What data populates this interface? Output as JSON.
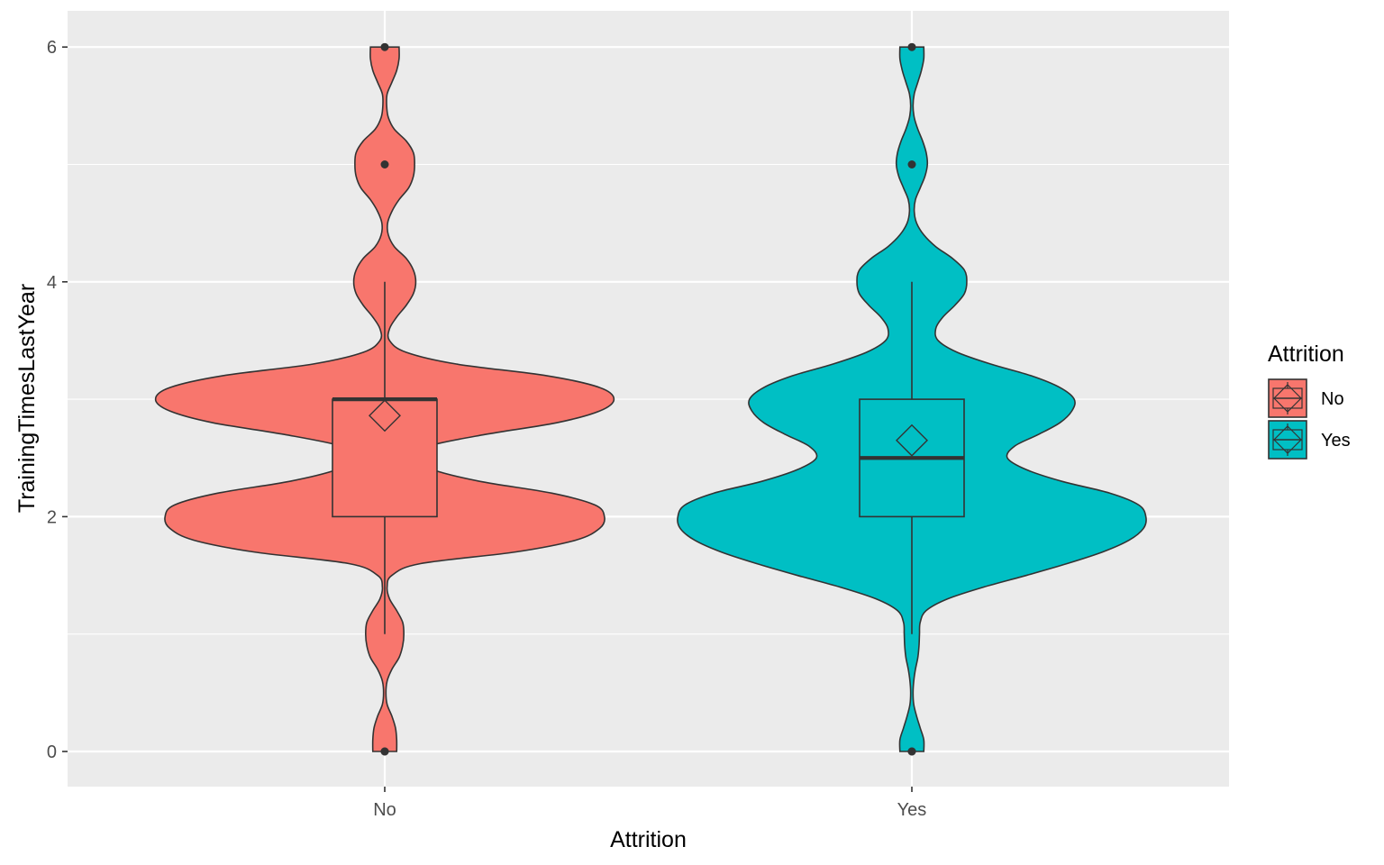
{
  "chart_data": {
    "type": "violin",
    "xlabel": "Attrition",
    "ylabel": "TrainingTimesLastYear",
    "categories": [
      "No",
      "Yes"
    ],
    "ylim": [
      -0.3,
      6.3
    ],
    "yticks": [
      0,
      2,
      4,
      6
    ],
    "grid": true,
    "legend": {
      "title": "Attrition",
      "position": "right",
      "entries": [
        "No",
        "Yes"
      ]
    },
    "colors": {
      "No": "#F8766D",
      "Yes": "#00BFC4",
      "panel": "#EBEBEB",
      "grid": "#FFFFFF",
      "outline": "#333333"
    },
    "series": [
      {
        "name": "No",
        "density": [
          [
            0,
            0.05
          ],
          [
            0.1,
            0.05
          ],
          [
            0.2,
            0.045
          ],
          [
            0.3,
            0.03
          ],
          [
            0.4,
            0.01
          ],
          [
            0.5,
            0.005
          ],
          [
            0.6,
            0.01
          ],
          [
            0.7,
            0.03
          ],
          [
            0.8,
            0.06
          ],
          [
            0.9,
            0.075
          ],
          [
            1,
            0.08
          ],
          [
            1.1,
            0.075
          ],
          [
            1.2,
            0.05
          ],
          [
            1.3,
            0.02
          ],
          [
            1.4,
            0.01
          ],
          [
            1.5,
            0.03
          ],
          [
            1.6,
            0.15
          ],
          [
            1.7,
            0.55
          ],
          [
            1.8,
            0.8
          ],
          [
            1.9,
            0.9
          ],
          [
            2,
            0.92
          ],
          [
            2.1,
            0.88
          ],
          [
            2.2,
            0.7
          ],
          [
            2.3,
            0.4
          ],
          [
            2.4,
            0.2
          ],
          [
            2.5,
            0.11
          ],
          [
            2.6,
            0.18
          ],
          [
            2.7,
            0.42
          ],
          [
            2.8,
            0.72
          ],
          [
            2.9,
            0.9
          ],
          [
            3,
            0.96
          ],
          [
            3.1,
            0.9
          ],
          [
            3.2,
            0.68
          ],
          [
            3.3,
            0.3
          ],
          [
            3.4,
            0.09
          ],
          [
            3.5,
            0.02
          ],
          [
            3.6,
            0.02
          ],
          [
            3.7,
            0.05
          ],
          [
            3.8,
            0.09
          ],
          [
            3.9,
            0.12
          ],
          [
            4,
            0.13
          ],
          [
            4.1,
            0.12
          ],
          [
            4.2,
            0.09
          ],
          [
            4.3,
            0.04
          ],
          [
            4.4,
            0.015
          ],
          [
            4.5,
            0.012
          ],
          [
            4.6,
            0.03
          ],
          [
            4.7,
            0.06
          ],
          [
            4.8,
            0.1
          ],
          [
            4.9,
            0.12
          ],
          [
            5,
            0.125
          ],
          [
            5.1,
            0.12
          ],
          [
            5.2,
            0.09
          ],
          [
            5.3,
            0.04
          ],
          [
            5.4,
            0.015
          ],
          [
            5.5,
            0.008
          ],
          [
            5.6,
            0.01
          ],
          [
            5.7,
            0.03
          ],
          [
            5.8,
            0.05
          ],
          [
            5.9,
            0.06
          ],
          [
            6,
            0.06
          ]
        ],
        "box": {
          "q1": 2,
          "median": 3,
          "q3": 3,
          "whisker_low": 1,
          "whisker_high": 4,
          "mean": 2.86,
          "outliers": [
            0,
            0,
            5,
            6
          ]
        }
      },
      {
        "name": "Yes",
        "density": [
          [
            0,
            0.05
          ],
          [
            0.1,
            0.05
          ],
          [
            0.2,
            0.035
          ],
          [
            0.3,
            0.02
          ],
          [
            0.4,
            0.008
          ],
          [
            0.5,
            0.005
          ],
          [
            0.6,
            0.008
          ],
          [
            0.7,
            0.015
          ],
          [
            0.8,
            0.025
          ],
          [
            0.9,
            0.03
          ],
          [
            1,
            0.032
          ],
          [
            1.1,
            0.035
          ],
          [
            1.2,
            0.06
          ],
          [
            1.3,
            0.15
          ],
          [
            1.4,
            0.3
          ],
          [
            1.5,
            0.48
          ],
          [
            1.6,
            0.65
          ],
          [
            1.7,
            0.8
          ],
          [
            1.8,
            0.91
          ],
          [
            1.9,
            0.97
          ],
          [
            2,
            0.98
          ],
          [
            2.1,
            0.95
          ],
          [
            2.2,
            0.83
          ],
          [
            2.3,
            0.63
          ],
          [
            2.4,
            0.48
          ],
          [
            2.5,
            0.4
          ],
          [
            2.6,
            0.43
          ],
          [
            2.7,
            0.53
          ],
          [
            2.8,
            0.62
          ],
          [
            2.9,
            0.67
          ],
          [
            3,
            0.68
          ],
          [
            3.1,
            0.62
          ],
          [
            3.2,
            0.5
          ],
          [
            3.3,
            0.33
          ],
          [
            3.4,
            0.19
          ],
          [
            3.5,
            0.11
          ],
          [
            3.6,
            0.1
          ],
          [
            3.7,
            0.13
          ],
          [
            3.8,
            0.18
          ],
          [
            3.9,
            0.22
          ],
          [
            4,
            0.23
          ],
          [
            4.1,
            0.22
          ],
          [
            4.2,
            0.17
          ],
          [
            4.3,
            0.1
          ],
          [
            4.4,
            0.05
          ],
          [
            4.5,
            0.02
          ],
          [
            4.6,
            0.01
          ],
          [
            4.7,
            0.015
          ],
          [
            4.8,
            0.035
          ],
          [
            4.9,
            0.055
          ],
          [
            5,
            0.065
          ],
          [
            5.1,
            0.06
          ],
          [
            5.2,
            0.045
          ],
          [
            5.3,
            0.025
          ],
          [
            5.4,
            0.01
          ],
          [
            5.5,
            0.005
          ],
          [
            5.6,
            0.01
          ],
          [
            5.7,
            0.025
          ],
          [
            5.8,
            0.04
          ],
          [
            5.9,
            0.05
          ],
          [
            6,
            0.05
          ]
        ],
        "box": {
          "q1": 2,
          "median": 2.5,
          "q3": 3,
          "whisker_low": 1,
          "whisker_high": 4,
          "mean": 2.65,
          "outliers": [
            0,
            0,
            5,
            6
          ]
        }
      }
    ]
  }
}
